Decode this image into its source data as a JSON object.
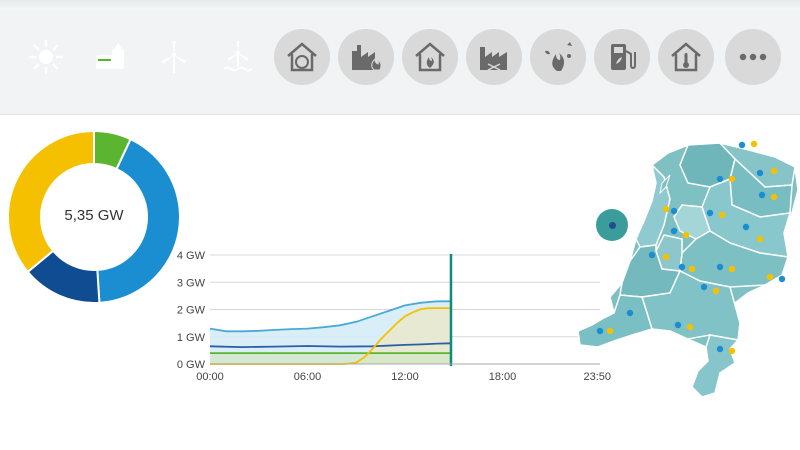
{
  "toolbar": {
    "buttons": [
      {
        "name": "sun-icon",
        "color": "#f5c000"
      },
      {
        "name": "biomass-icon",
        "color": "#5cb531"
      },
      {
        "name": "wind-turbine-icon",
        "color": "#1a8ed0"
      },
      {
        "name": "offshore-wind-icon",
        "color": "#0f4c91"
      },
      {
        "name": "house-heating-icon",
        "color": "#d9d9d9"
      },
      {
        "name": "factory-fire-icon",
        "color": "#d9d9d9"
      },
      {
        "name": "house-fire-icon",
        "color": "#d9d9d9"
      },
      {
        "name": "factory-icon",
        "color": "#d9d9d9"
      },
      {
        "name": "waste-fire-icon",
        "color": "#d9d9d9"
      },
      {
        "name": "fuel-pump-icon",
        "color": "#d9d9d9"
      },
      {
        "name": "house-thermometer-icon",
        "color": "#d9d9d9"
      },
      {
        "name": "more-icon",
        "color": "#d9d9d9"
      }
    ]
  },
  "donut": {
    "total_label": "5,35 GW",
    "segments": [
      {
        "name": "biomass",
        "fraction": 0.07,
        "color": "#5cb531"
      },
      {
        "name": "wind",
        "fraction": 0.42,
        "color": "#1a8ed0"
      },
      {
        "name": "offshore-wind",
        "fraction": 0.15,
        "color": "#0f4c91"
      },
      {
        "name": "solar",
        "fraction": 0.36,
        "color": "#f5c000"
      }
    ]
  },
  "chart_data": {
    "type": "area",
    "yticks": [
      "4 GW",
      "3 GW",
      "2 GW",
      "1 GW",
      "0 GW"
    ],
    "xticks": [
      "00:00",
      "06:00",
      "12:00",
      "18:00",
      "23:50"
    ],
    "ylim": [
      0,
      4
    ],
    "current_time": "14:50",
    "series": [
      {
        "name": "total",
        "color": "#4aaad6",
        "x": [
          0,
          1,
          2,
          3,
          4,
          5,
          6,
          7,
          8,
          9,
          10,
          11,
          12,
          13,
          14,
          14.8
        ],
        "values": [
          1.3,
          1.2,
          1.2,
          1.22,
          1.25,
          1.28,
          1.3,
          1.35,
          1.42,
          1.55,
          1.75,
          1.95,
          2.15,
          2.25,
          2.3,
          2.3
        ]
      },
      {
        "name": "offshore-wind",
        "color": "#2b5fa8",
        "x": [
          0,
          2,
          4,
          6,
          8,
          10,
          12,
          13,
          14,
          14.8
        ],
        "values": [
          0.65,
          0.62,
          0.64,
          0.66,
          0.64,
          0.65,
          0.7,
          0.72,
          0.75,
          0.76
        ]
      },
      {
        "name": "biomass",
        "color": "#5cb531",
        "x": [
          0,
          14.8
        ],
        "values": [
          0.4,
          0.4
        ]
      },
      {
        "name": "solar",
        "color": "#f5c000",
        "x": [
          0,
          8.3,
          9,
          9.5,
          10,
          10.5,
          11,
          11.5,
          12,
          12.5,
          13,
          13.5,
          14,
          14.8
        ],
        "values": [
          0,
          0,
          0.05,
          0.25,
          0.55,
          0.9,
          1.2,
          1.5,
          1.75,
          1.9,
          2.02,
          2.05,
          2.05,
          2.05
        ]
      }
    ]
  },
  "map": {
    "fill": "#7fc0c3",
    "stroke": "#ffffff",
    "marker_colors": [
      "#1a8ed0",
      "#f5c000"
    ]
  }
}
